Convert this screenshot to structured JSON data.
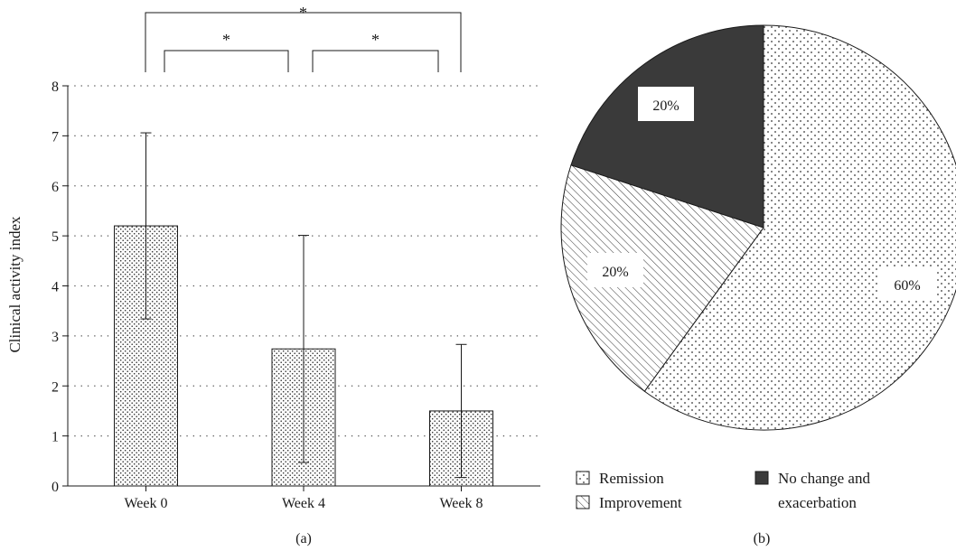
{
  "chart_data": [
    {
      "type": "bar",
      "panel_label": "(a)",
      "categories": [
        "Week 0",
        "Week 4",
        "Week 8"
      ],
      "values": [
        5.2,
        2.74,
        1.5
      ],
      "error": [
        1.86,
        2.27,
        1.33
      ],
      "ylabel": "Clinical activity index",
      "ylim": [
        0,
        8
      ],
      "yticks": [
        "0",
        "1",
        "2",
        "3",
        "4",
        "5",
        "6",
        "7",
        "8"
      ],
      "grid": true,
      "significance": [
        {
          "from": 0,
          "to": 1,
          "label": "*"
        },
        {
          "from": 1,
          "to": 2,
          "label": "*"
        },
        {
          "from": 0,
          "to": 2,
          "label": "*"
        }
      ]
    },
    {
      "type": "pie",
      "panel_label": "(b)",
      "slices": [
        {
          "name": "Remission",
          "value": 60,
          "label": "60%",
          "fill": "dots"
        },
        {
          "name": "Improvement",
          "value": 20,
          "label": "20%",
          "fill": "hatch"
        },
        {
          "name": "No change and exacerbation",
          "value": 20,
          "label": "20%",
          "fill": "dark"
        }
      ],
      "legend": [
        {
          "key": "dots",
          "text": [
            "Remission"
          ]
        },
        {
          "key": "hatch",
          "text": [
            "Improvement"
          ]
        },
        {
          "key": "dark",
          "text": [
            "No change and",
            "exacerbation"
          ]
        }
      ],
      "colors": {
        "dark": "#3a3a3a",
        "line": "#1a1a1a"
      }
    }
  ]
}
